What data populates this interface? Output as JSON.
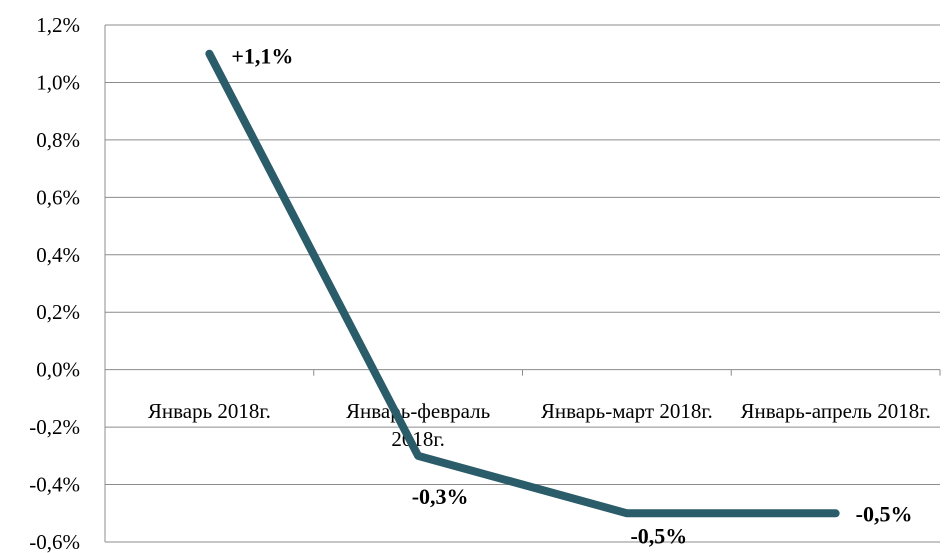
{
  "chart_data": {
    "type": "line",
    "categories": [
      "Январь 2018г.",
      "Январь-февраль 2018г.",
      "Январь-март 2018г.",
      "Январь-апрель 2018г."
    ],
    "series": [
      {
        "values": [
          1.1,
          -0.3,
          -0.5,
          -0.5
        ],
        "value_labels": [
          "+1,1%",
          "-0,3%",
          "-0,5%",
          "-0,5%"
        ],
        "color": "#2a5c69"
      }
    ],
    "ylim": [
      -0.6,
      1.2
    ],
    "yticks": [
      {
        "value": -0.6,
        "label": "-0,6%"
      },
      {
        "value": -0.4,
        "label": "-0,4%"
      },
      {
        "value": -0.2,
        "label": "-0,2%"
      },
      {
        "value": 0,
        "label": "0,0%"
      },
      {
        "value": 0.2,
        "label": "0,2%"
      },
      {
        "value": 0.4,
        "label": "0,4%"
      },
      {
        "value": 0.6,
        "label": "0,6%"
      },
      {
        "value": 0.8,
        "label": "0,8%"
      },
      {
        "value": 1.0,
        "label": "1,0%"
      },
      {
        "value": 1.2,
        "label": "1,2%"
      }
    ],
    "grid": true
  }
}
